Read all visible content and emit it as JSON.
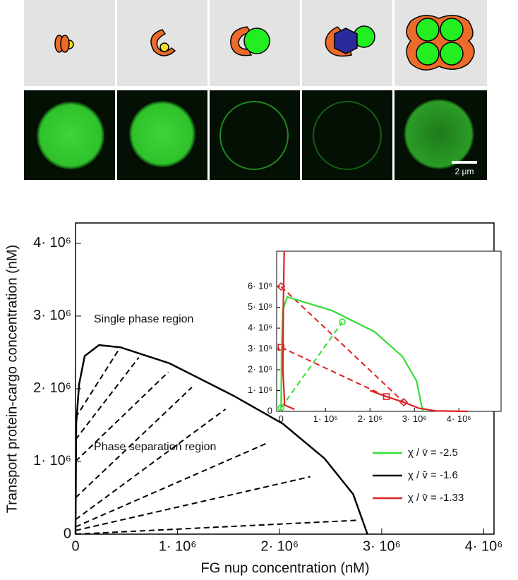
{
  "images": {
    "scale_bar": "2 μm"
  },
  "chart_data": [
    {
      "type": "line",
      "xlabel": "FG nup concentration (nM)",
      "ylabel": "Transport protein-cargo concentration (nM)",
      "annotations": [
        "Single phase region",
        "Phase separation region"
      ],
      "xlim": [
        0,
        4100000
      ],
      "ylim": [
        0,
        4280000
      ],
      "xticks": [
        0,
        {
          "value": 1000000,
          "label": "1· 10⁶"
        },
        {
          "value": 2000000,
          "label": "2· 10⁶"
        },
        {
          "value": 3000000,
          "label": "3· 10⁶"
        },
        {
          "value": 4000000,
          "label": "4· 10⁶"
        }
      ],
      "yticks": [
        0,
        {
          "value": 1000000,
          "label": "1· 10⁶"
        },
        {
          "value": 2000000,
          "label": "2· 10⁶"
        },
        {
          "value": 3000000,
          "label": "3· 10⁶"
        },
        {
          "value": 4000000,
          "label": "4· 10⁶"
        }
      ],
      "series": [
        {
          "name": "χ / v̄ = -1.6",
          "color": "#000000",
          "x": [
            0,
            7000,
            35000,
            90000,
            230000,
            440000,
            920000,
            1540000,
            2030000,
            2440000,
            2720000,
            2860000
          ],
          "y": [
            0,
            1520000,
            2060000,
            2450000,
            2600000,
            2570000,
            2350000,
            1910000,
            1520000,
            1040000,
            550000,
            0
          ]
        }
      ],
      "tie_lines": [
        {
          "color": "#000000",
          "x": [
            0,
            2750000
          ],
          "y": [
            0,
            190000
          ]
        },
        {
          "color": "#000000",
          "x": [
            0,
            2300000
          ],
          "y": [
            50000,
            790000
          ]
        },
        {
          "color": "#000000",
          "x": [
            0,
            1890000
          ],
          "y": [
            100000,
            1260000
          ]
        },
        {
          "color": "#000000",
          "x": [
            0,
            1470000
          ],
          "y": [
            200000,
            1720000
          ]
        },
        {
          "color": "#000000",
          "x": [
            0,
            1140000
          ],
          "y": [
            500000,
            2020000
          ]
        },
        {
          "color": "#000000",
          "x": [
            0,
            910000
          ],
          "y": [
            1000000,
            2230000
          ]
        },
        {
          "color": "#000000",
          "x": [
            0,
            620000
          ],
          "y": [
            1300000,
            2430000
          ]
        },
        {
          "color": "#000000",
          "x": [
            0,
            420000
          ],
          "y": [
            1600000,
            2530000
          ]
        }
      ]
    },
    {
      "type": "line",
      "xlim": [
        -100000,
        4950000
      ],
      "ylim": [
        0,
        7700000
      ],
      "xticks": [
        0,
        {
          "value": 1000000,
          "label": "1· 10⁶"
        },
        {
          "value": 2000000,
          "label": "2· 10⁶"
        },
        {
          "value": 3000000,
          "label": "3· 10⁶"
        },
        {
          "value": 4000000,
          "label": "4· 10⁶"
        }
      ],
      "yticks": [
        0,
        {
          "value": 1000000,
          "label": "1· 10⁶"
        },
        {
          "value": 2000000,
          "label": "2· 10⁶"
        },
        {
          "value": 3000000,
          "label": "3· 10⁶"
        },
        {
          "value": 4000000,
          "label": "4· 10⁶"
        },
        {
          "value": 5000000,
          "label": "5· 10⁶"
        },
        {
          "value": 6000000,
          "label": "6· 10⁶"
        }
      ],
      "series": [
        {
          "name": "χ / v̄ = -2.5",
          "color": "#33dd33",
          "x": [
            0,
            10000,
            40000,
            140000,
            1140000,
            2100000,
            2730000,
            3050000,
            3160000,
            3200000
          ],
          "y": [
            0,
            2800000,
            4900000,
            5500000,
            4850000,
            3830000,
            2640000,
            1460000,
            270000,
            0
          ]
        },
        {
          "name": "χ / v̄ = -1.33",
          "color": "#dd2222",
          "x": [
            70000,
            50000,
            40000,
            80000,
            300000,
            null,
            2000000,
            2370000,
            2760000,
            3100000,
            3500000,
            4200000
          ],
          "y": [
            7700000,
            5000000,
            2000000,
            300000,
            100000,
            null,
            1000000,
            710000,
            440000,
            150000,
            20000,
            0
          ]
        }
      ],
      "tie_lines": [
        {
          "color": "#33dd33",
          "marker": "circle",
          "x": [
            0,
            1380000
          ],
          "y": [
            170000,
            4300000
          ]
        },
        {
          "color": "#dd2222",
          "marker": "diamond",
          "x": [
            0,
            2760000
          ],
          "y": [
            6000000,
            440000
          ]
        },
        {
          "color": "#dd2222",
          "marker": "square",
          "x": [
            0,
            2370000
          ],
          "y": [
            3080000,
            710000
          ]
        }
      ]
    }
  ]
}
